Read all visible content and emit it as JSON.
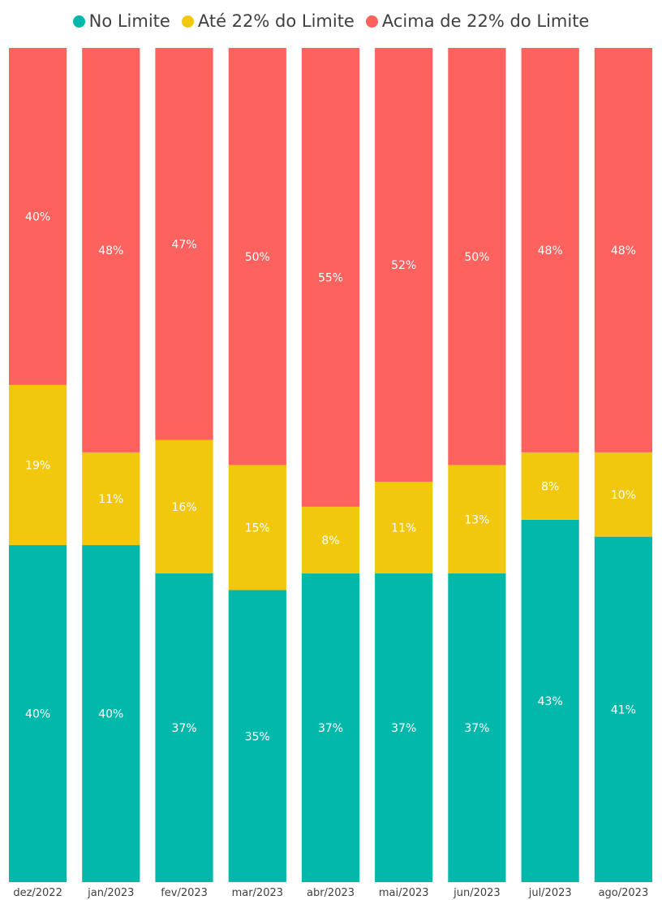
{
  "chart_data": {
    "type": "bar",
    "stacked": true,
    "categories": [
      "dez/2022",
      "jan/2023",
      "fev/2023",
      "mar/2023",
      "abr/2023",
      "mai/2023",
      "jun/2023",
      "jul/2023",
      "ago/2023"
    ],
    "series": [
      {
        "name": "No Limite",
        "color": "#01B8AA",
        "values": [
          40,
          40,
          37,
          35,
          37,
          37,
          37,
          43,
          41
        ]
      },
      {
        "name": "Até 22% do Limite",
        "color": "#F2C80F",
        "values": [
          19,
          11,
          16,
          15,
          8,
          11,
          13,
          8,
          10
        ]
      },
      {
        "name": "Acima de 22% do Limite",
        "color": "#FD625E",
        "values": [
          40,
          48,
          47,
          50,
          55,
          52,
          50,
          48,
          48
        ]
      }
    ],
    "data_label_suffix": "%",
    "ylim": [
      0,
      100
    ],
    "legend_position": "top",
    "grid": false
  }
}
